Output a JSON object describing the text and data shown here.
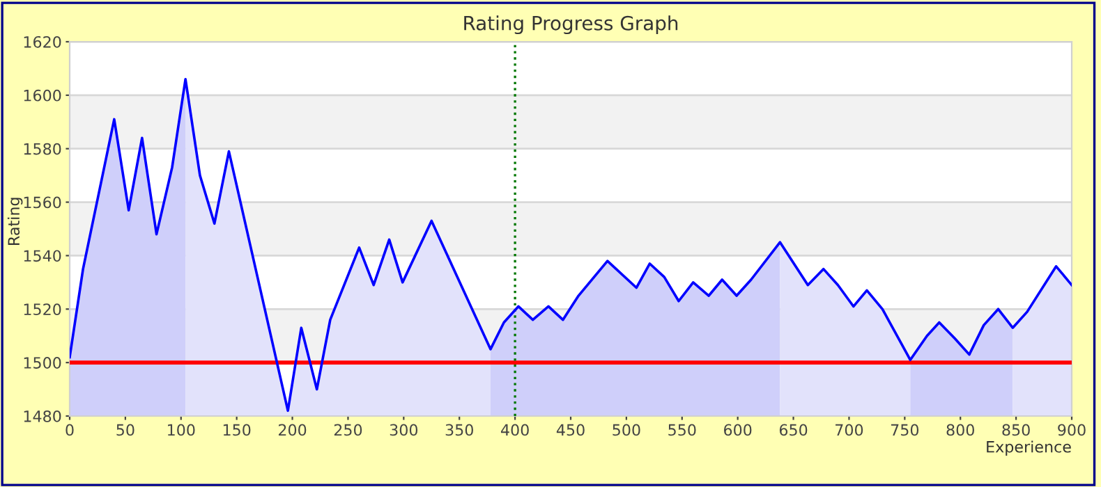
{
  "chart_data": {
    "type": "line",
    "title": "Rating Progress Graph",
    "xlabel": "Experience",
    "ylabel": "Rating",
    "xlim": [
      0,
      900
    ],
    "xticks": [
      0,
      50,
      100,
      150,
      200,
      250,
      300,
      350,
      400,
      450,
      500,
      550,
      600,
      650,
      700,
      750,
      800,
      850,
      900
    ],
    "ylim": [
      1480,
      1620
    ],
    "yticks": [
      1480,
      1500,
      1520,
      1540,
      1560,
      1580,
      1600,
      1620
    ],
    "grid": "y",
    "legend": false,
    "marker": "none",
    "line_style": "solid",
    "series": [
      {
        "type": "area",
        "color": "#cfcffa",
        "x": [
          0,
          12,
          40,
          53,
          65,
          78,
          92,
          104
        ],
        "values": [
          1502,
          1535,
          1591,
          1557,
          1584,
          1548,
          1573,
          1606
        ]
      },
      {
        "type": "area",
        "color": "#e2e2fb",
        "x": [
          104,
          117,
          130,
          143,
          196,
          208,
          222,
          234,
          260,
          273,
          287,
          299,
          325,
          378
        ],
        "values": [
          1606,
          1570,
          1552,
          1579,
          1482,
          1513,
          1490,
          1516,
          1543,
          1529,
          1546,
          1530,
          1553,
          1505
        ]
      },
      {
        "type": "area",
        "color": "#cfcffa",
        "x": [
          378,
          390,
          403,
          416,
          430,
          443,
          457,
          483,
          509,
          521,
          534,
          547,
          560,
          574,
          586,
          599,
          612,
          638
        ],
        "values": [
          1505,
          1515,
          1521,
          1516,
          1521,
          1516,
          1525,
          1538,
          1528,
          1537,
          1532,
          1523,
          1530,
          1525,
          1531,
          1525,
          1531,
          1545
        ]
      },
      {
        "type": "area",
        "color": "#e2e2fb",
        "x": [
          638,
          663,
          677,
          690,
          704,
          716,
          730,
          755
        ],
        "values": [
          1545,
          1529,
          1535,
          1529,
          1521,
          1527,
          1520,
          1501
        ]
      },
      {
        "type": "area",
        "color": "#cfcffa",
        "x": [
          755,
          770,
          781,
          795,
          808,
          821,
          834,
          847
        ],
        "values": [
          1501,
          1510,
          1515,
          1509,
          1503,
          1514,
          1520,
          1513
        ]
      },
      {
        "type": "area",
        "color": "#e2e2fb",
        "x": [
          847,
          860,
          886,
          900
        ],
        "values": [
          1513,
          1519,
          1536,
          1529
        ]
      },
      {
        "color": "#0000ff",
        "x": [
          0,
          12,
          40,
          53,
          65,
          78,
          92,
          104,
          117,
          130,
          143,
          196,
          208,
          222,
          234,
          260,
          273,
          287,
          299,
          325,
          378,
          390,
          403,
          416,
          430,
          443,
          457,
          483,
          509,
          521,
          534,
          547,
          560,
          574,
          586,
          599,
          612,
          638,
          663,
          677,
          690,
          704,
          716,
          730,
          755,
          770,
          781,
          795,
          808,
          821,
          834,
          847,
          860,
          886,
          900
        ],
        "values": [
          1502,
          1535,
          1591,
          1557,
          1584,
          1548,
          1573,
          1606,
          1570,
          1552,
          1579,
          1482,
          1513,
          1490,
          1516,
          1543,
          1529,
          1546,
          1530,
          1553,
          1505,
          1515,
          1521,
          1516,
          1521,
          1516,
          1525,
          1538,
          1528,
          1537,
          1532,
          1523,
          1530,
          1525,
          1531,
          1525,
          1531,
          1545,
          1529,
          1535,
          1529,
          1521,
          1527,
          1520,
          1501,
          1510,
          1515,
          1509,
          1503,
          1514,
          1520,
          1513,
          1519,
          1536,
          1529
        ]
      }
    ],
    "bands": [
      {
        "axis": "y",
        "from": 1500,
        "to": 1520,
        "color": "#f2f2f2"
      },
      {
        "axis": "y",
        "from": 1540,
        "to": 1560,
        "color": "#f2f2f2"
      },
      {
        "axis": "y",
        "from": 1580,
        "to": 1600,
        "color": "#f2f2f2"
      }
    ],
    "ref_lines": [
      {
        "axis": "y",
        "value": 1500,
        "color": "#ff0000",
        "line_style": "solid"
      },
      {
        "axis": "x",
        "value": 400,
        "color": "#007700",
        "line_style": "dotted"
      }
    ]
  }
}
